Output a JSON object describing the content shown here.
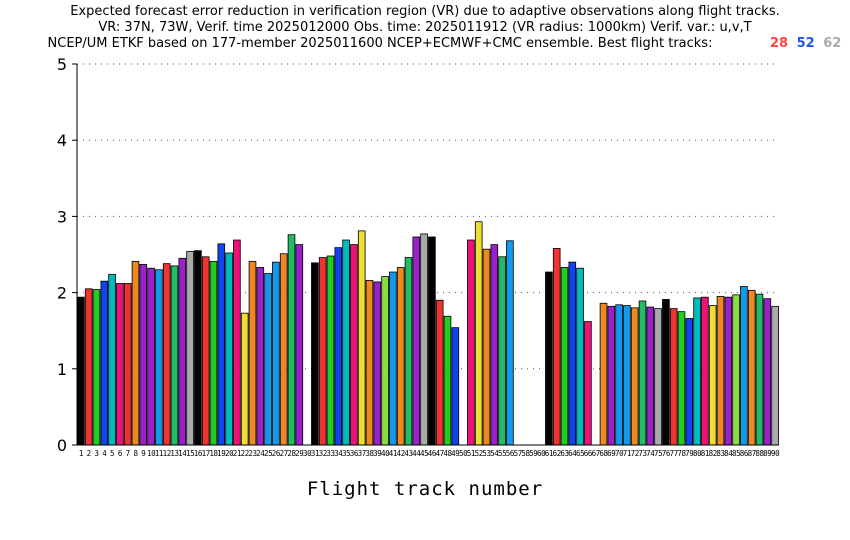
{
  "chart_data": {
    "type": "bar",
    "title_lines": [
      "Expected forecast error reduction in verification region (VR) due to adaptive observations along flight tracks.",
      "VR: 37N, 73W, Verif. time 2025012000 Obs. time: 2025011912 (VR radius: 1000km)  Verif. var.: u,v,T",
      "NCEP/UM ETKF based on 177-member 2025011600 NCEP+ECMWF+CMC ensemble. Best flight tracks:"
    ],
    "best_tracks": [
      {
        "label": "28",
        "color": "#ff4444"
      },
      {
        "label": "52",
        "color": "#2255ee"
      },
      {
        "label": "62",
        "color": "#aaaaaa"
      }
    ],
    "xlabel": "Flight track number",
    "ylabel": "",
    "ylim": [
      0,
      5
    ],
    "yticks": [
      0,
      1,
      2,
      3,
      4,
      5
    ],
    "grid": true,
    "categories": [
      "1",
      "2",
      "3",
      "4",
      "5",
      "6",
      "7",
      "8",
      "9",
      "10",
      "11",
      "12",
      "13",
      "14",
      "15",
      "16",
      "17",
      "18",
      "19",
      "20",
      "21",
      "22",
      "23",
      "24",
      "25",
      "26",
      "27",
      "28",
      "29",
      "30",
      "31",
      "32",
      "33",
      "34",
      "35",
      "36",
      "37",
      "38",
      "39",
      "40",
      "41",
      "42",
      "43",
      "44",
      "45",
      "46",
      "47",
      "48",
      "49",
      "50",
      "51",
      "52",
      "53",
      "54",
      "55",
      "56",
      "57",
      "58",
      "59",
      "60",
      "61",
      "62",
      "63",
      "64",
      "65",
      "66",
      "67",
      "68",
      "69",
      "70",
      "71",
      "72",
      "73",
      "74",
      "75",
      "76",
      "77",
      "78",
      "79",
      "80",
      "81",
      "82",
      "83",
      "84",
      "85",
      "86",
      "87",
      "88",
      "89",
      "90"
    ],
    "values": [
      1.94,
      2.05,
      2.04,
      2.15,
      2.24,
      2.12,
      2.12,
      2.41,
      2.37,
      2.32,
      2.3,
      2.38,
      2.35,
      2.45,
      2.54,
      2.55,
      2.47,
      2.41,
      2.64,
      2.52,
      2.69,
      1.73,
      2.41,
      2.33,
      2.25,
      2.4,
      2.51,
      2.76,
      2.63,
      null,
      2.39,
      2.46,
      2.48,
      2.59,
      2.69,
      2.63,
      2.81,
      2.16,
      2.14,
      2.21,
      2.27,
      2.33,
      2.46,
      2.73,
      2.77,
      2.73,
      1.9,
      1.69,
      1.54,
      null,
      2.69,
      2.93,
      2.57,
      2.63,
      2.47,
      2.68,
      null,
      null,
      null,
      null,
      2.27,
      2.58,
      2.33,
      2.4,
      2.32,
      1.62,
      null,
      1.86,
      1.82,
      1.84,
      1.83,
      1.8,
      1.89,
      1.81,
      1.79,
      1.91,
      1.79,
      1.75,
      1.66,
      1.93,
      1.94,
      1.83,
      1.95,
      1.94,
      1.97,
      2.08,
      2.03,
      1.98,
      1.92,
      1.82
    ],
    "bar_colors": [
      "#000000",
      "#ee3333",
      "#22cc22",
      "#1144ee",
      "#00bbbb",
      "#ee1177",
      "#ee3333",
      "#ee8822",
      "#9922cc",
      "#9922cc",
      "#1199ee",
      "#ee3333",
      "#22bb66",
      "#9922cc",
      "#aaaaaa",
      "#000000",
      "#ee3333",
      "#22cc22",
      "#1144ee",
      "#00bbbb",
      "#ee1177",
      "#eedd33",
      "#ee8822",
      "#9922cc",
      "#1199ee",
      "#1199ee",
      "#ee8822",
      "#22bb66",
      "#9922cc",
      "#ffffff",
      "#000000",
      "#ee3333",
      "#22cc22",
      "#1144ee",
      "#00bbbb",
      "#ee1177",
      "#eedd33",
      "#ee8822",
      "#9922cc",
      "#88dd44",
      "#1199ee",
      "#ee8822",
      "#22bb66",
      "#9922cc",
      "#aaaaaa",
      "#000000",
      "#ee3333",
      "#22cc22",
      "#1144ee",
      "#ffffff",
      "#ee1177",
      "#eedd33",
      "#ee8822",
      "#9922cc",
      "#22bb66",
      "#1199ee",
      "#ffffff",
      "#ffffff",
      "#ffffff",
      "#ffffff",
      "#000000",
      "#ee3333",
      "#22cc22",
      "#1144ee",
      "#00bbbb",
      "#ee1177",
      "#ffffff",
      "#ee8822",
      "#9922cc",
      "#1199ee",
      "#1199ee",
      "#ee8822",
      "#22bb66",
      "#9922cc",
      "#aaaaaa",
      "#000000",
      "#ee3333",
      "#22cc22",
      "#1144ee",
      "#00bbbb",
      "#ee1177",
      "#eedd33",
      "#ee8822",
      "#9922cc",
      "#88dd44",
      "#1199ee",
      "#ee8822",
      "#22bb66",
      "#9922cc",
      "#aaaaaa"
    ]
  }
}
